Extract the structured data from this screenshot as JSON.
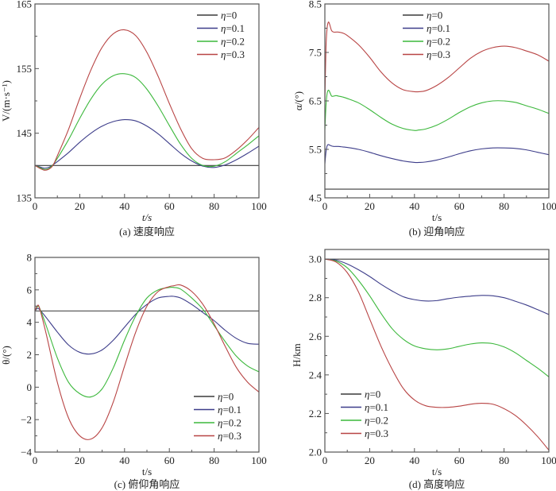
{
  "colors": {
    "eta0": "#3a3a3a",
    "eta01": "#3d3d8a",
    "eta02": "#3cb83c",
    "eta03": "#b84444",
    "frame": "#555555"
  },
  "chart_data": [
    {
      "id": "a",
      "type": "line",
      "title": "",
      "caption": "(a) 速度响应",
      "xlabel": "t/s",
      "ylabel": "V/(m·s⁻¹)",
      "xlim": [
        0,
        100
      ],
      "ylim": [
        135,
        165
      ],
      "xticks": [
        0,
        20,
        40,
        60,
        80,
        100
      ],
      "yticks": [
        135,
        145,
        155,
        165
      ],
      "legend_position": "top-right",
      "x": [
        0,
        2,
        4,
        6,
        8,
        10,
        15,
        20,
        25,
        30,
        35,
        40,
        45,
        50,
        55,
        60,
        65,
        70,
        75,
        80,
        85,
        90,
        95,
        100
      ],
      "series": [
        {
          "name": "η=0",
          "key": "eta0",
          "values": [
            140,
            140,
            140,
            140,
            140,
            140,
            140,
            140,
            140,
            140,
            140,
            140,
            140,
            140,
            140,
            140,
            140,
            140,
            140,
            140,
            140,
            140,
            140,
            140
          ]
        },
        {
          "name": "η=0.1",
          "key": "eta01",
          "values": [
            140,
            139.8,
            139.6,
            139.7,
            140.1,
            140.6,
            142.0,
            143.6,
            145.0,
            146.1,
            146.8,
            147.1,
            146.9,
            146.1,
            144.9,
            143.4,
            141.9,
            140.7,
            139.9,
            139.7,
            140.1,
            140.9,
            141.9,
            143.0
          ]
        },
        {
          "name": "η=0.2",
          "key": "eta02",
          "values": [
            140,
            139.7,
            139.4,
            139.5,
            140.1,
            141.1,
            144.0,
            147.3,
            150.3,
            152.6,
            153.9,
            154.2,
            153.6,
            151.8,
            149.2,
            146.2,
            143.3,
            141.1,
            140.0,
            139.9,
            140.6,
            141.9,
            143.2,
            144.6
          ]
        },
        {
          "name": "η=0.3",
          "key": "eta03",
          "values": [
            140,
            139.6,
            139.3,
            139.4,
            140.0,
            141.5,
            145.6,
            150.4,
            154.8,
            158.3,
            160.4,
            161.0,
            160.1,
            157.5,
            153.8,
            149.6,
            145.7,
            142.6,
            141.1,
            140.9,
            141.2,
            142.4,
            144.0,
            145.9
          ]
        }
      ]
    },
    {
      "id": "b",
      "type": "line",
      "title": "",
      "caption": "(b) 迎角响应",
      "xlabel": "t/s",
      "ylabel": "α/(°)",
      "xlim": [
        0,
        100
      ],
      "ylim": [
        4.5,
        8.5
      ],
      "xticks": [
        0,
        20,
        40,
        60,
        80,
        100
      ],
      "yticks": [
        4.5,
        5.5,
        6.5,
        7.5,
        8.5
      ],
      "legend_position": "top-center",
      "x": [
        0,
        0.5,
        1,
        1.5,
        2,
        3,
        4,
        5,
        6,
        8,
        10,
        15,
        20,
        25,
        30,
        35,
        40,
        42,
        45,
        50,
        55,
        60,
        65,
        70,
        75,
        80,
        85,
        90,
        95,
        100
      ],
      "series": [
        {
          "name": "η=0",
          "key": "eta0",
          "values": [
            4.68,
            4.68,
            4.68,
            4.68,
            4.68,
            4.68,
            4.68,
            4.68,
            4.68,
            4.68,
            4.68,
            4.68,
            4.68,
            4.68,
            4.68,
            4.68,
            4.68,
            4.68,
            4.68,
            4.68,
            4.68,
            4.68,
            4.68,
            4.68,
            4.68,
            4.68,
            4.68,
            4.68,
            4.68,
            4.68
          ]
        },
        {
          "name": "η=0.1",
          "key": "eta01",
          "values": [
            5.2,
            5.45,
            5.57,
            5.6,
            5.59,
            5.57,
            5.56,
            5.56,
            5.56,
            5.55,
            5.54,
            5.5,
            5.44,
            5.37,
            5.31,
            5.26,
            5.23,
            5.23,
            5.24,
            5.28,
            5.34,
            5.41,
            5.47,
            5.51,
            5.53,
            5.53,
            5.52,
            5.49,
            5.44,
            5.39
          ]
        },
        {
          "name": "η=0.2",
          "key": "eta02",
          "values": [
            5.9,
            6.4,
            6.65,
            6.72,
            6.7,
            6.6,
            6.6,
            6.61,
            6.6,
            6.58,
            6.55,
            6.46,
            6.32,
            6.16,
            6.02,
            5.93,
            5.89,
            5.9,
            5.92,
            6.0,
            6.12,
            6.26,
            6.38,
            6.46,
            6.5,
            6.5,
            6.47,
            6.4,
            6.33,
            6.24
          ]
        },
        {
          "name": "η=0.3",
          "key": "eta03",
          "values": [
            6.5,
            7.6,
            8.0,
            8.12,
            8.1,
            7.95,
            7.92,
            7.92,
            7.92,
            7.9,
            7.85,
            7.66,
            7.4,
            7.1,
            6.87,
            6.73,
            6.69,
            6.69,
            6.71,
            6.82,
            6.98,
            7.18,
            7.38,
            7.52,
            7.6,
            7.63,
            7.6,
            7.53,
            7.45,
            7.32
          ]
        }
      ]
    },
    {
      "id": "c",
      "type": "line",
      "title": "",
      "caption": "(c) 俯仰角响应",
      "xlabel": "t/s",
      "ylabel": "θ/(°)",
      "xlim": [
        0,
        100
      ],
      "ylim": [
        -4,
        8
      ],
      "xticks": [
        0,
        20,
        40,
        60,
        80,
        100
      ],
      "yticks": [
        -4,
        -2,
        0,
        2,
        4,
        6,
        8
      ],
      "legend_position": "bottom-right",
      "x": [
        0,
        1,
        2,
        5,
        10,
        15,
        20,
        25,
        30,
        35,
        40,
        45,
        50,
        55,
        60,
        62,
        65,
        70,
        75,
        80,
        85,
        90,
        95,
        100
      ],
      "series": [
        {
          "name": "η=0",
          "key": "eta0",
          "values": [
            4.7,
            4.7,
            4.7,
            4.7,
            4.7,
            4.7,
            4.7,
            4.7,
            4.7,
            4.7,
            4.7,
            4.7,
            4.7,
            4.7,
            4.7,
            4.7,
            4.7,
            4.7,
            4.7,
            4.7,
            4.7,
            4.7,
            4.7,
            4.7
          ]
        },
        {
          "name": "η=0.1",
          "key": "eta01",
          "values": [
            4.7,
            4.85,
            4.8,
            4.3,
            3.4,
            2.6,
            2.15,
            2.05,
            2.3,
            2.9,
            3.7,
            4.5,
            5.1,
            5.5,
            5.6,
            5.6,
            5.5,
            5.1,
            4.6,
            4.1,
            3.5,
            3.0,
            2.7,
            2.65
          ]
        },
        {
          "name": "η=0.2",
          "key": "eta02",
          "values": [
            4.7,
            4.95,
            4.9,
            3.8,
            1.8,
            0.3,
            -0.4,
            -0.6,
            -0.1,
            1.2,
            2.9,
            4.4,
            5.5,
            6.0,
            6.15,
            6.15,
            6.05,
            5.5,
            4.8,
            3.8,
            2.8,
            1.9,
            1.3,
            0.95
          ]
        },
        {
          "name": "η=0.3",
          "key": "eta03",
          "values": [
            4.7,
            5.0,
            4.9,
            3.3,
            0.3,
            -1.9,
            -3.0,
            -3.2,
            -2.5,
            -0.9,
            1.3,
            3.4,
            5.0,
            5.9,
            6.2,
            6.25,
            6.3,
            5.9,
            5.1,
            3.9,
            2.5,
            1.2,
            0.3,
            -0.3
          ]
        }
      ]
    },
    {
      "id": "d",
      "type": "line",
      "title": "",
      "caption": "(d) 高度响应",
      "xlabel": "t/s",
      "ylabel": "H/km",
      "xlim": [
        0,
        100
      ],
      "ylim": [
        2.0,
        3.05
      ],
      "xticks": [
        0,
        20,
        40,
        60,
        80,
        100
      ],
      "yticks": [
        2.0,
        2.2,
        2.4,
        2.6,
        2.8,
        3.0
      ],
      "legend_position": "bottom-left",
      "x": [
        0,
        5,
        10,
        15,
        20,
        25,
        30,
        35,
        40,
        45,
        50,
        55,
        60,
        65,
        70,
        75,
        80,
        85,
        90,
        95,
        100
      ],
      "series": [
        {
          "name": "η=0",
          "key": "eta0",
          "values": [
            3.0,
            3.0,
            3.0,
            3.0,
            3.0,
            3.0,
            3.0,
            3.0,
            3.0,
            3.0,
            3.0,
            3.0,
            3.0,
            3.0,
            3.0,
            3.0,
            3.0,
            3.0,
            3.0,
            3.0,
            3.0
          ]
        },
        {
          "name": "η=0.1",
          "key": "eta01",
          "values": [
            3.0,
            2.995,
            2.975,
            2.945,
            2.91,
            2.87,
            2.835,
            2.805,
            2.79,
            2.783,
            2.785,
            2.795,
            2.803,
            2.808,
            2.812,
            2.81,
            2.8,
            2.782,
            2.762,
            2.738,
            2.713
          ]
        },
        {
          "name": "η=0.2",
          "key": "eta02",
          "values": [
            3.0,
            2.99,
            2.955,
            2.89,
            2.81,
            2.72,
            2.64,
            2.585,
            2.55,
            2.535,
            2.53,
            2.535,
            2.548,
            2.56,
            2.566,
            2.562,
            2.545,
            2.515,
            2.475,
            2.435,
            2.39
          ]
        },
        {
          "name": "η=0.3",
          "key": "eta03",
          "values": [
            3.0,
            2.985,
            2.93,
            2.83,
            2.69,
            2.55,
            2.43,
            2.33,
            2.27,
            2.24,
            2.232,
            2.232,
            2.238,
            2.248,
            2.253,
            2.248,
            2.225,
            2.19,
            2.14,
            2.08,
            2.01
          ]
        }
      ]
    }
  ]
}
